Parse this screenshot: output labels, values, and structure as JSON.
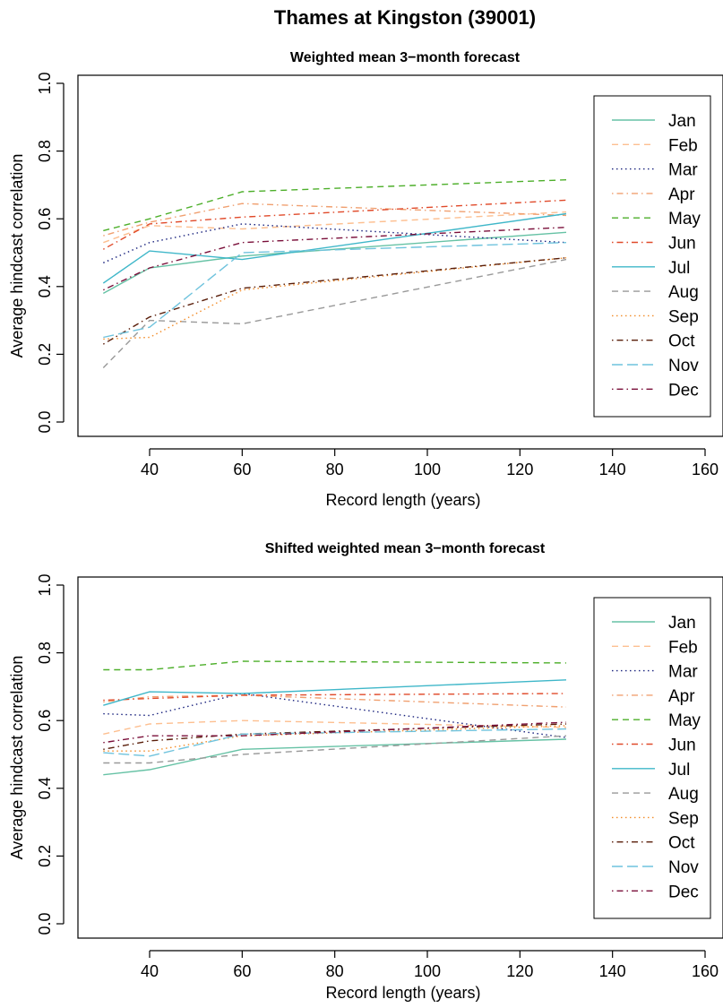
{
  "figure_title": "Thames at Kingston (39001)",
  "chart_data": [
    {
      "type": "line",
      "title": "Weighted mean 3−month forecast",
      "xlabel": "Record length (years)",
      "ylabel": "Average hindcast correlation",
      "xlim": [
        30,
        160
      ],
      "ylim": [
        0.0,
        1.0
      ],
      "xticks": [
        40,
        60,
        80,
        100,
        120,
        140,
        160
      ],
      "yticks": [
        "0.0",
        "0.2",
        "0.4",
        "0.6",
        "0.8",
        "1.0"
      ],
      "grid": false,
      "legend_position": "right",
      "x": [
        30,
        40,
        60,
        130
      ],
      "series": [
        {
          "name": "Jan",
          "color": "#66c2a5",
          "dash": "solid",
          "values": [
            0.38,
            0.455,
            0.49,
            0.56
          ]
        },
        {
          "name": "Feb",
          "color": "#fdbf90",
          "dash": "dashed",
          "values": [
            0.53,
            0.58,
            0.57,
            0.62
          ]
        },
        {
          "name": "Mar",
          "color": "#1a237e",
          "dash": "dotted",
          "values": [
            0.47,
            0.53,
            0.585,
            0.53
          ]
        },
        {
          "name": "Apr",
          "color": "#f0a070",
          "dash": "dotdash",
          "values": [
            0.55,
            0.59,
            0.645,
            0.61
          ]
        },
        {
          "name": "May",
          "color": "#4daf2a",
          "dash": "dashed",
          "values": [
            0.565,
            0.6,
            0.68,
            0.715
          ]
        },
        {
          "name": "Jun",
          "color": "#e04a2a",
          "dash": "dotdash",
          "values": [
            0.51,
            0.585,
            0.605,
            0.655
          ]
        },
        {
          "name": "Jul",
          "color": "#3fb7c9",
          "dash": "solid",
          "values": [
            0.41,
            0.505,
            0.48,
            0.615
          ]
        },
        {
          "name": "Aug",
          "color": "#999999",
          "dash": "dashed",
          "values": [
            0.16,
            0.3,
            0.29,
            0.48
          ]
        },
        {
          "name": "Sep",
          "color": "#f28c28",
          "dash": "dotted",
          "values": [
            0.245,
            0.25,
            0.39,
            0.485
          ]
        },
        {
          "name": "Oct",
          "color": "#5a1e0a",
          "dash": "dotdash",
          "values": [
            0.23,
            0.31,
            0.395,
            0.485
          ]
        },
        {
          "name": "Nov",
          "color": "#6fc3dd",
          "dash": "longdash",
          "values": [
            0.25,
            0.28,
            0.5,
            0.53
          ]
        },
        {
          "name": "Dec",
          "color": "#7a0f3a",
          "dash": "dotdash",
          "values": [
            0.39,
            0.455,
            0.53,
            0.575
          ]
        }
      ]
    },
    {
      "type": "line",
      "title": "Shifted weighted mean 3−month forecast",
      "xlabel": "Record length (years)",
      "ylabel": "Average hindcast correlation",
      "xlim": [
        30,
        160
      ],
      "ylim": [
        0.0,
        1.0
      ],
      "xticks": [
        40,
        60,
        80,
        100,
        120,
        140,
        160
      ],
      "yticks": [
        "0.0",
        "0.2",
        "0.4",
        "0.6",
        "0.8",
        "1.0"
      ],
      "grid": false,
      "legend_position": "right",
      "x": [
        30,
        40,
        60,
        130
      ],
      "series": [
        {
          "name": "Jan",
          "color": "#66c2a5",
          "dash": "solid",
          "values": [
            0.44,
            0.455,
            0.515,
            0.545
          ]
        },
        {
          "name": "Feb",
          "color": "#fdbf90",
          "dash": "dashed",
          "values": [
            0.56,
            0.59,
            0.6,
            0.58
          ]
        },
        {
          "name": "Mar",
          "color": "#1a237e",
          "dash": "dotted",
          "values": [
            0.62,
            0.615,
            0.68,
            0.55
          ]
        },
        {
          "name": "Apr",
          "color": "#f0a070",
          "dash": "dotdash",
          "values": [
            0.655,
            0.67,
            0.675,
            0.64
          ]
        },
        {
          "name": "May",
          "color": "#4daf2a",
          "dash": "dashed",
          "values": [
            0.75,
            0.75,
            0.775,
            0.77
          ]
        },
        {
          "name": "Jun",
          "color": "#e04a2a",
          "dash": "dotdash",
          "values": [
            0.66,
            0.665,
            0.675,
            0.68
          ]
        },
        {
          "name": "Jul",
          "color": "#3fb7c9",
          "dash": "solid",
          "values": [
            0.645,
            0.685,
            0.68,
            0.72
          ]
        },
        {
          "name": "Aug",
          "color": "#999999",
          "dash": "dashed",
          "values": [
            0.475,
            0.475,
            0.5,
            0.555
          ]
        },
        {
          "name": "Sep",
          "color": "#f28c28",
          "dash": "dotted",
          "values": [
            0.51,
            0.51,
            0.555,
            0.585
          ]
        },
        {
          "name": "Oct",
          "color": "#5a1e0a",
          "dash": "dotdash",
          "values": [
            0.515,
            0.54,
            0.56,
            0.59
          ]
        },
        {
          "name": "Nov",
          "color": "#6fc3dd",
          "dash": "longdash",
          "values": [
            0.505,
            0.495,
            0.56,
            0.575
          ]
        },
        {
          "name": "Dec",
          "color": "#7a0f3a",
          "dash": "dotdash",
          "values": [
            0.535,
            0.555,
            0.555,
            0.595
          ]
        }
      ]
    }
  ]
}
